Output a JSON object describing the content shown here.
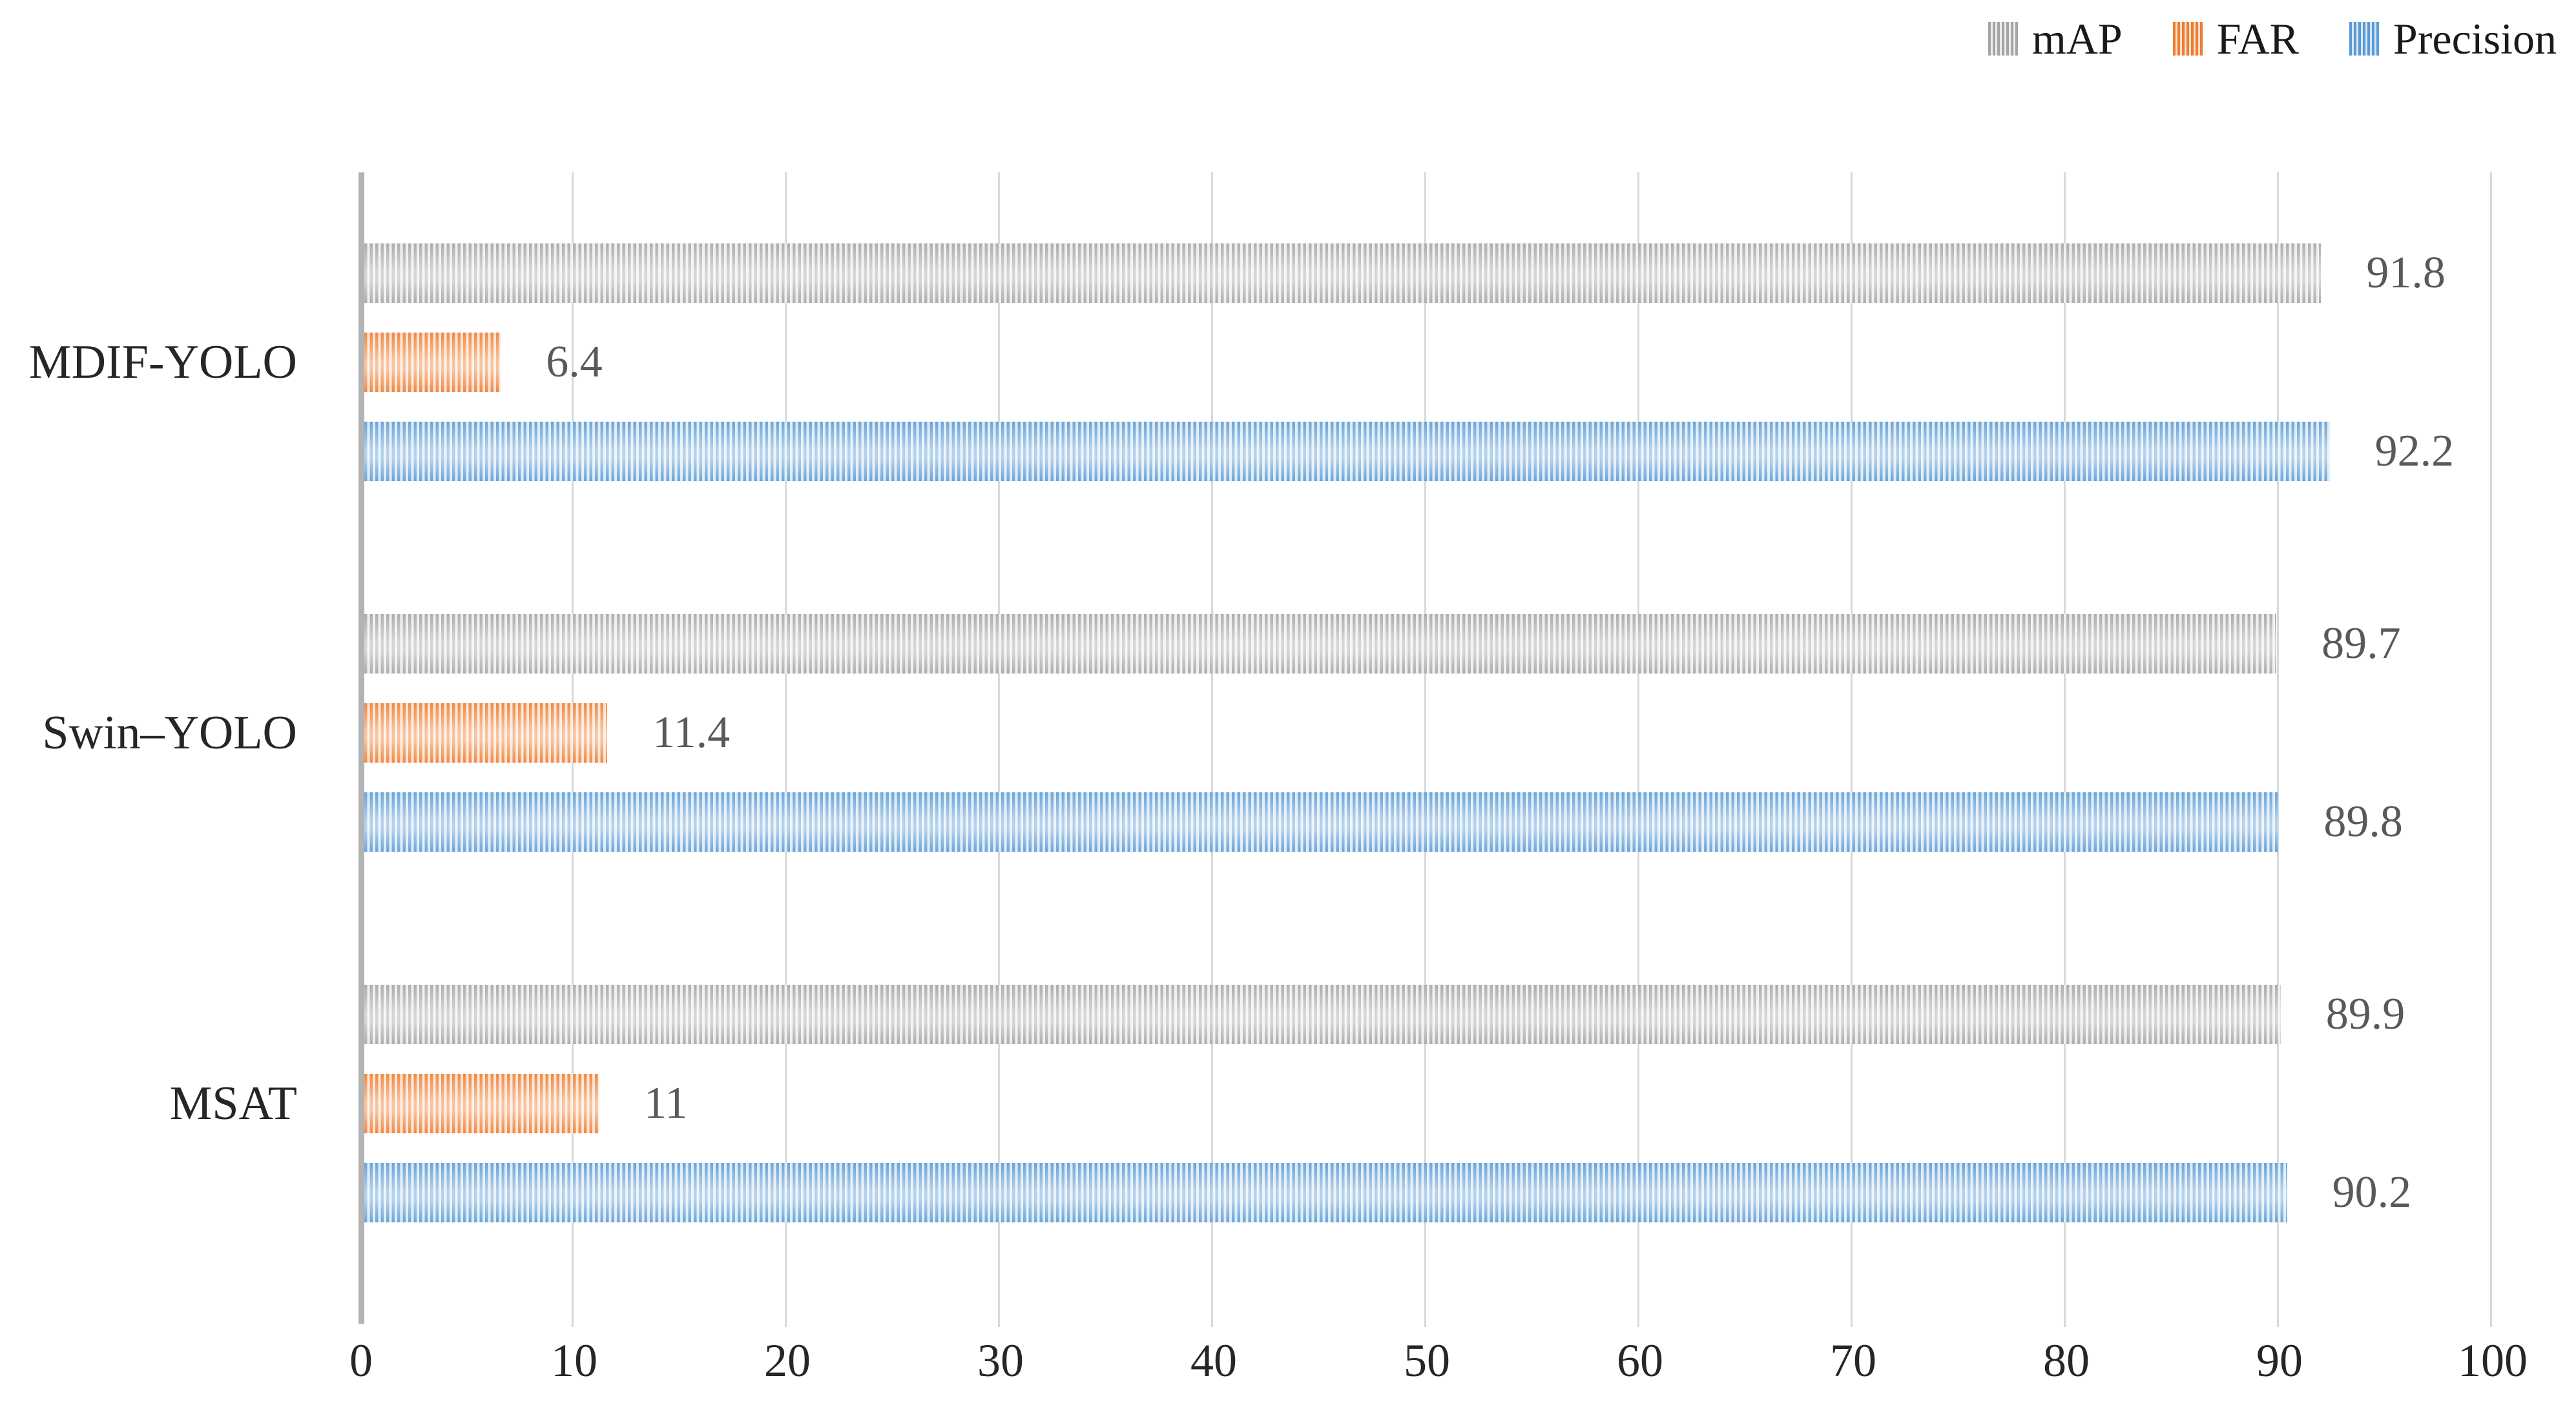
{
  "legend": {
    "items": [
      {
        "label": "mAP",
        "series": "map"
      },
      {
        "label": "FAR",
        "series": "far"
      },
      {
        "label": "Precision",
        "series": "precision"
      }
    ]
  },
  "chart_data": {
    "type": "bar",
    "orientation": "horizontal",
    "title": "",
    "xlabel": "",
    "ylabel": "",
    "categories": [
      "MDIF-YOLO",
      "Swin–YOLO",
      "MSAT"
    ],
    "series": [
      {
        "name": "mAP",
        "key": "map",
        "color": "#a5a5a5",
        "values": [
          91.8,
          89.7,
          89.9
        ]
      },
      {
        "name": "FAR",
        "key": "far",
        "color": "#ed7d31",
        "values": [
          6.4,
          11.4,
          11
        ]
      },
      {
        "name": "Precision",
        "key": "precision",
        "color": "#5b9bd5",
        "values": [
          92.2,
          89.8,
          90.2
        ]
      }
    ],
    "value_labels": [
      [
        "91.8",
        "6.4",
        "92.2"
      ],
      [
        "89.7",
        "11.4",
        "89.8"
      ],
      [
        "89.9",
        "11",
        "90.2"
      ]
    ],
    "xlim": [
      0,
      100
    ],
    "x_ticks": [
      "0",
      "10",
      "20",
      "30",
      "40",
      "50",
      "60",
      "70",
      "80",
      "90",
      "100"
    ],
    "grid": true,
    "gridline_color": "#d9d9d9",
    "axis_line_color": "#b3b3b3",
    "value_label_color": "#595959",
    "tick_label_color": "#262626",
    "legend_position": "top-right",
    "bar_pattern": "vertical-stripes"
  }
}
